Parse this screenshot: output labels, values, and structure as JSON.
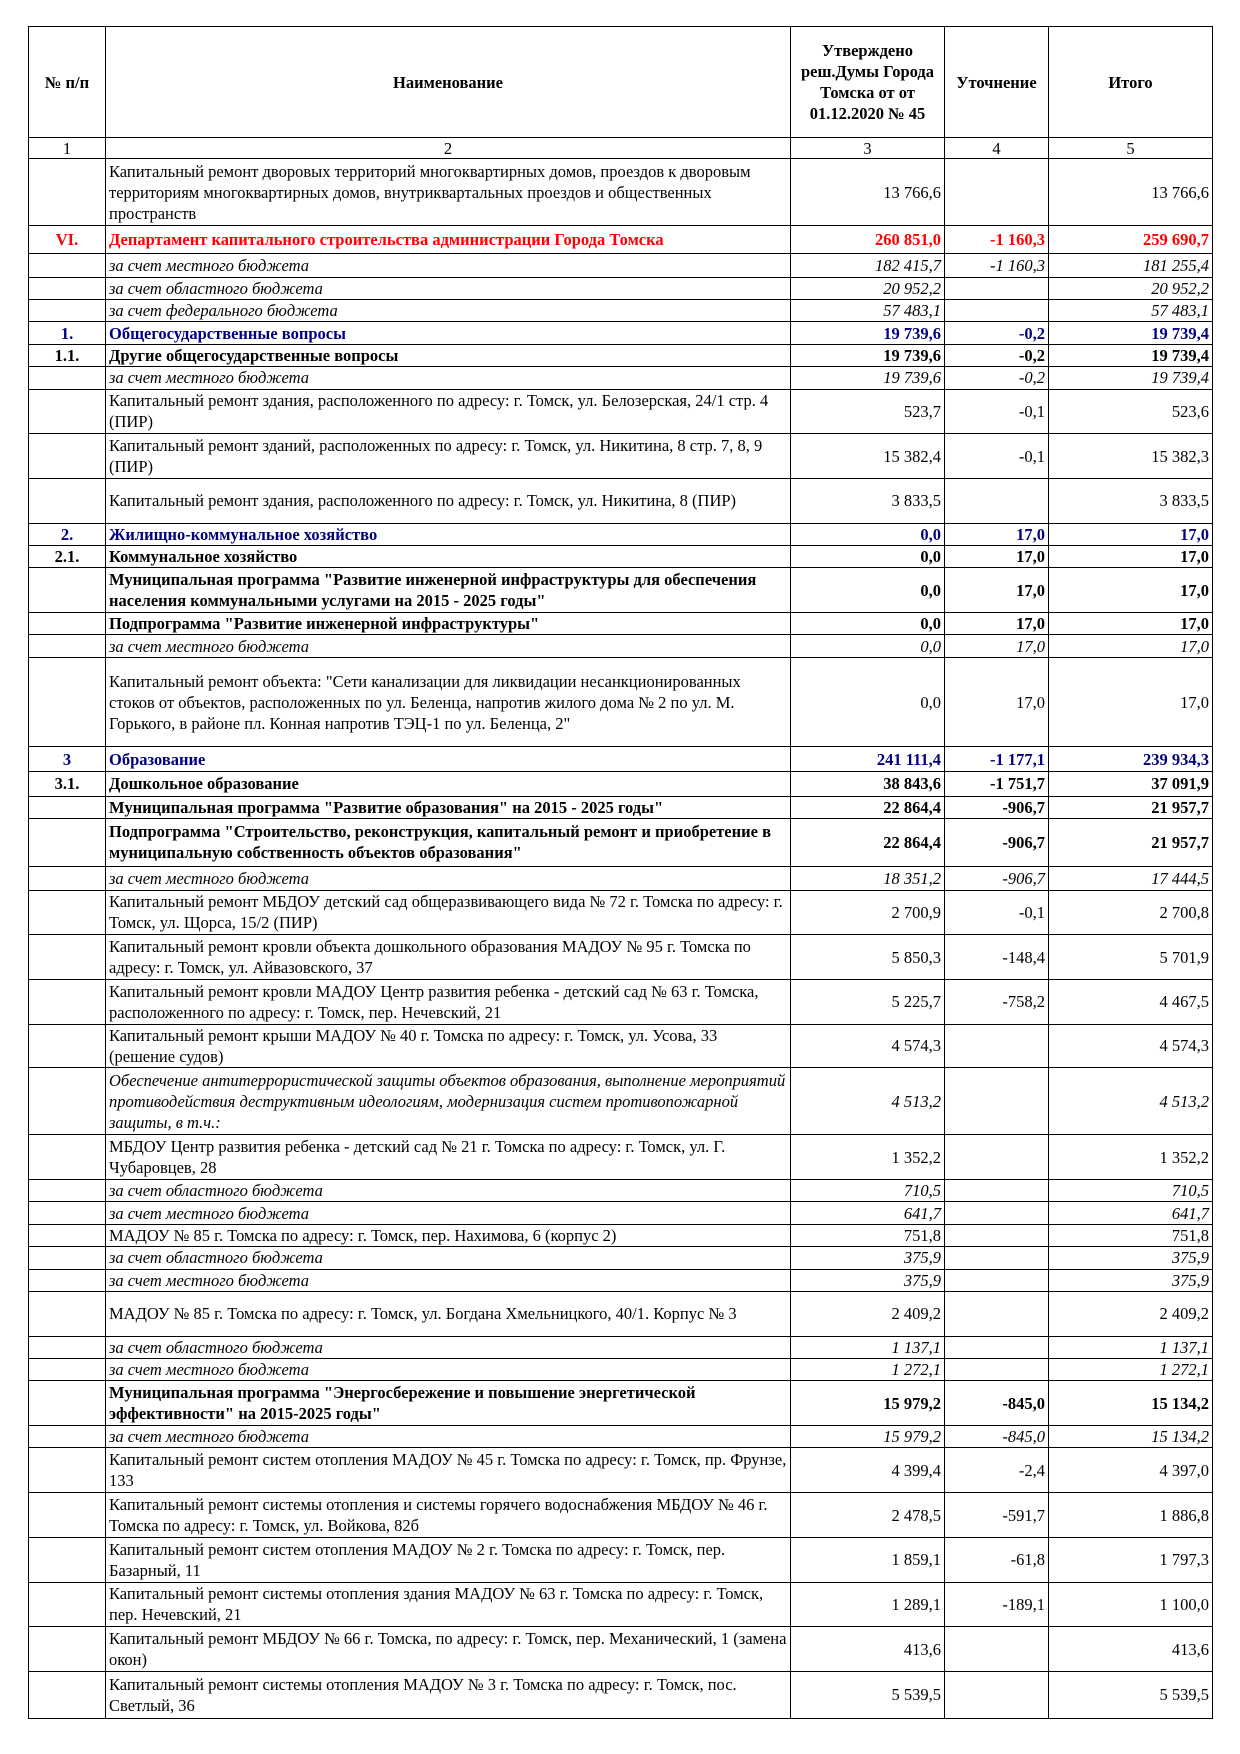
{
  "header": {
    "col1": "№ п/п",
    "col2": "Наименование",
    "col3": "Утверждено реш.Думы Города Томска от от 01.12.2020 № 45",
    "col4": "Уточнение",
    "col5": "Итого",
    "index": [
      "1",
      "2",
      "3",
      "4",
      "5"
    ]
  },
  "rows": [
    {
      "num": "",
      "name": "Капитальный ремонт дворовых территорий многоквартирных домов, проездов к дворовым территориям многоквартирных домов, внутриквартальных проездов и общественных пространств",
      "c3": "13 766,6",
      "c4": "",
      "c5": "13 766,6",
      "style": "n"
    },
    {
      "num": "VI.",
      "name": "Департамент капитального строительства администрации Города Томска",
      "c3": "260 851,0",
      "c4": "-1 160,3",
      "c5": "259 690,7",
      "style": "red"
    },
    {
      "num": "",
      "name": "за счет местного бюджета",
      "c3": "182 415,7",
      "c4": "-1 160,3",
      "c5": "181 255,4",
      "style": "i"
    },
    {
      "num": "",
      "name": "за счет областного бюджета",
      "c3": "20 952,2",
      "c4": "",
      "c5": "20 952,2",
      "style": "i"
    },
    {
      "num": "",
      "name": "за счет федерального бюджета",
      "c3": "57 483,1",
      "c4": "",
      "c5": "57 483,1",
      "style": "i"
    },
    {
      "num": "1.",
      "name": "Общегосударственные вопросы",
      "c3": "19 739,6",
      "c4": "-0,2",
      "c5": "19 739,4",
      "style": "blue"
    },
    {
      "num": "1.1.",
      "name": "Другие общегосударственные вопросы",
      "c3": "19 739,6",
      "c4": "-0,2",
      "c5": "19 739,4",
      "style": "b"
    },
    {
      "num": "",
      "name": "за счет местного бюджета",
      "c3": "19 739,6",
      "c4": "-0,2",
      "c5": "19 739,4",
      "style": "i"
    },
    {
      "num": "",
      "name": "Капитальный ремонт здания, расположенного по адресу: г. Томск, ул. Белозерская, 24/1 стр. 4 (ПИР)",
      "c3": "523,7",
      "c4": "-0,1",
      "c5": "523,6",
      "style": "n"
    },
    {
      "num": "",
      "name": "Капитальный ремонт зданий, расположенных  по адресу: г. Томск, ул. Никитина, 8 стр. 7, 8, 9 (ПИР)",
      "c3": "15 382,4",
      "c4": "-0,1",
      "c5": "15 382,3",
      "style": "n"
    },
    {
      "num": "",
      "name": "Капитальный ремонт здания, расположенного  по адресу: г. Томск, ул. Никитина, 8 (ПИР)",
      "c3": "3 833,5",
      "c4": "",
      "c5": "3 833,5",
      "style": "n"
    },
    {
      "num": "2.",
      "name": "Жилищно-коммунальное хозяйство",
      "c3": "0,0",
      "c4": "17,0",
      "c5": "17,0",
      "style": "blue"
    },
    {
      "num": "2.1.",
      "name": "Коммунальное хозяйство",
      "c3": "0,0",
      "c4": "17,0",
      "c5": "17,0",
      "style": "b"
    },
    {
      "num": "",
      "name": "Муниципальная программа \"Развитие инженерной инфраструктуры для обеспечения населения коммунальными услугами на 2015 - 2025 годы\"",
      "c3": "0,0",
      "c4": "17,0",
      "c5": "17,0",
      "style": "b"
    },
    {
      "num": "",
      "name": "Подпрограмма \"Развитие инженерной инфраструктуры\"",
      "c3": "0,0",
      "c4": "17,0",
      "c5": "17,0",
      "style": "b"
    },
    {
      "num": "",
      "name": "за счет местного бюджета",
      "c3": "0,0",
      "c4": "17,0",
      "c5": "17,0",
      "style": "i"
    },
    {
      "num": "",
      "name": "Капитальный ремонт объекта: \"Сети канализации для ликвидации несанкционированных стоков от объектов, расположенных по ул. Беленца, напротив жилого дома № 2 по ул. М. Горького, в районе пл. Конная напротив ТЭЦ-1 по ул. Беленца, 2\"",
      "c3": "0,0",
      "c4": "17,0",
      "c5": "17,0",
      "style": "n"
    },
    {
      "num": "3",
      "name": "Образование",
      "c3": "241 111,4",
      "c4": "-1 177,1",
      "c5": "239 934,3",
      "style": "blue"
    },
    {
      "num": "3.1.",
      "name": "Дошкольное образование",
      "c3": "38 843,6",
      "c4": "-1 751,7",
      "c5": "37 091,9",
      "style": "b"
    },
    {
      "num": "",
      "name": "Муниципальная программа \"Развитие образования\" на 2015 - 2025 годы\"",
      "c3": "22 864,4",
      "c4": "-906,7",
      "c5": "21 957,7",
      "style": "b"
    },
    {
      "num": "",
      "name": "Подпрограмма \"Строительство, реконструкция, капитальный ремонт и приобретение в муниципальную собственность объектов образования\"",
      "c3": "22 864,4",
      "c4": "-906,7",
      "c5": "21 957,7",
      "style": "b"
    },
    {
      "num": "",
      "name": "за счет местного бюджета",
      "c3": "18 351,2",
      "c4": "-906,7",
      "c5": "17 444,5",
      "style": "i"
    },
    {
      "num": "",
      "name": "Капитальный ремонт МБДОУ детский сад общеразвивающего вида № 72 г. Томска по адресу: г. Томск, ул. Щорса, 15/2 (ПИР)",
      "c3": "2 700,9",
      "c4": "-0,1",
      "c5": "2 700,8",
      "style": "n"
    },
    {
      "num": "",
      "name": "Капитальный ремонт кровли объекта дошкольного образования МАДОУ № 95 г. Томска по адресу: г. Томск, ул. Айвазовского, 37",
      "c3": "5 850,3",
      "c4": "-148,4",
      "c5": "5 701,9",
      "style": "n"
    },
    {
      "num": "",
      "name": "Капитальный ремонт кровли МАДОУ Центр развития ребенка - детский сад № 63 г. Томска, расположенного по адресу: г. Томск, пер. Нечевский, 21",
      "c3": "5 225,7",
      "c4": "-758,2",
      "c5": "4 467,5",
      "style": "n"
    },
    {
      "num": "",
      "name": "Капитальный ремонт крыши МАДОУ № 40 г. Томска по адресу: г. Томск, ул. Усова, 33 (решение судов)",
      "c3": "4 574,3",
      "c4": "",
      "c5": "4 574,3",
      "style": "n"
    },
    {
      "num": "",
      "name": "Обеспечение антитеррористической защиты объектов образования, выполнение мероприятий противодействия деструктивным идеологиям, модернизация систем противопожарной защиты, в т.ч.:",
      "c3": "4 513,2",
      "c4": "",
      "c5": "4 513,2",
      "style": "i"
    },
    {
      "num": "",
      "name": "МБДОУ Центр развития ребенка - детский сад № 21 г. Томска по адресу: г. Томск, ул. Г. Чубаровцев, 28",
      "c3": "1 352,2",
      "c4": "",
      "c5": "1 352,2",
      "style": "n"
    },
    {
      "num": "",
      "name": "за счет областного бюджета",
      "c3": "710,5",
      "c4": "",
      "c5": "710,5",
      "style": "i"
    },
    {
      "num": "",
      "name": "за счет местного бюджета",
      "c3": "641,7",
      "c4": "",
      "c5": "641,7",
      "style": "i"
    },
    {
      "num": "",
      "name": "МАДОУ № 85 г. Томска по адресу: г. Томск, пер. Нахимова, 6 (корпус 2)",
      "c3": "751,8",
      "c4": "",
      "c5": "751,8",
      "style": "n"
    },
    {
      "num": "",
      "name": "за счет областного бюджета",
      "c3": "375,9",
      "c4": "",
      "c5": "375,9",
      "style": "i"
    },
    {
      "num": "",
      "name": "за счет местного бюджета",
      "c3": "375,9",
      "c4": "",
      "c5": "375,9",
      "style": "i"
    },
    {
      "num": "",
      "name": "МАДОУ № 85 г. Томска по адресу: г. Томск, ул. Богдана Хмельницкого, 40/1. Корпус № 3",
      "c3": "2 409,2",
      "c4": "",
      "c5": "2 409,2",
      "style": "n"
    },
    {
      "num": "",
      "name": "за счет областного бюджета",
      "c3": "1 137,1",
      "c4": "",
      "c5": "1 137,1",
      "style": "i"
    },
    {
      "num": "",
      "name": "за счет местного бюджета",
      "c3": "1 272,1",
      "c4": "",
      "c5": "1 272,1",
      "style": "i"
    },
    {
      "num": "",
      "name": "Муниципальная программа \"Энергосбережение и повышение энергетической эффективности\" на 2015-2025 годы\"",
      "c3": "15 979,2",
      "c4": "-845,0",
      "c5": "15 134,2",
      "style": "b"
    },
    {
      "num": "",
      "name": "за счет местного бюджета",
      "c3": "15 979,2",
      "c4": "-845,0",
      "c5": "15 134,2",
      "style": "i"
    },
    {
      "num": "",
      "name": "Капитальный ремонт систем отопления МАДОУ № 45 г. Томска по адресу: г. Томск, пр. Фрунзе, 133",
      "c3": "4 399,4",
      "c4": "-2,4",
      "c5": "4 397,0",
      "style": "n"
    },
    {
      "num": "",
      "name": "Капитальный ремонт системы отопления и системы горячего водоснабжения МБДОУ № 46 г. Томска по адресу: г. Томск, ул. Войкова, 82б",
      "c3": "2 478,5",
      "c4": "-591,7",
      "c5": "1 886,8",
      "style": "n"
    },
    {
      "num": "",
      "name": "Капитальный ремонт систем отопления МАДОУ № 2 г. Томска по адресу: г. Томск, пер. Базарный, 11",
      "c3": "1 859,1",
      "c4": "-61,8",
      "c5": "1 797,3",
      "style": "n"
    },
    {
      "num": "",
      "name": "Капитальный ремонт системы отопления здания МАДОУ № 63 г. Томска по адресу: г. Томск, пер. Нечевский, 21",
      "c3": "1 289,1",
      "c4": "-189,1",
      "c5": "1 100,0",
      "style": "n"
    },
    {
      "num": "",
      "name": "Капитальный ремонт МБДОУ № 66 г. Томска, по адресу: г. Томск, пер. Механический, 1 (замена окон)",
      "c3": "413,6",
      "c4": "",
      "c5": "413,6",
      "style": "n"
    },
    {
      "num": "",
      "name": "Капитальный ремонт системы отопления МАДОУ № 3 г. Томска по адресу: г. Томск, пос. Светлый, 36",
      "c3": "5 539,5",
      "c4": "",
      "c5": "5 539,5",
      "style": "n"
    }
  ],
  "colors": {
    "red_section": "#ff0000",
    "blue_section": "#000080"
  }
}
